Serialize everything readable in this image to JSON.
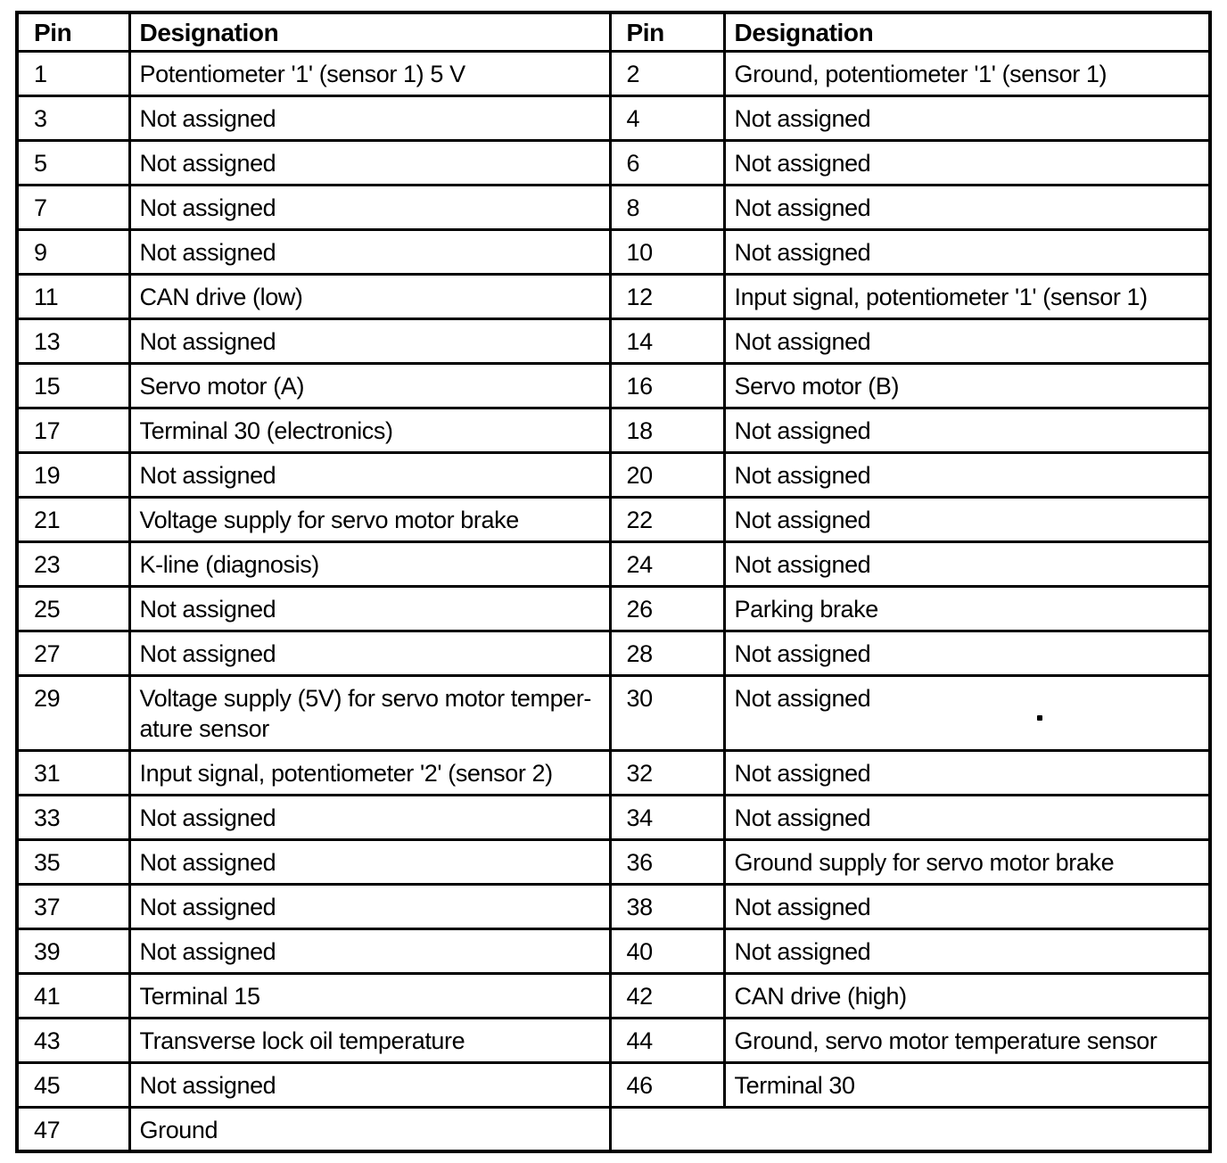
{
  "table": {
    "header": [
      "Pin",
      "Designation",
      "Pin",
      "Designation"
    ],
    "rows": [
      {
        "pin_left": "1",
        "designation_left": "Potentiometer '1' (sensor 1) 5 V",
        "pin_right": "2",
        "designation_right": "Ground, potentiometer '1' (sensor 1)"
      },
      {
        "pin_left": "3",
        "designation_left": "Not assigned",
        "pin_right": "4",
        "designation_right": "Not assigned"
      },
      {
        "pin_left": "5",
        "designation_left": "Not assigned",
        "pin_right": "6",
        "designation_right": "Not assigned"
      },
      {
        "pin_left": "7",
        "designation_left": "Not assigned",
        "pin_right": "8",
        "designation_right": "Not assigned"
      },
      {
        "pin_left": "9",
        "designation_left": "Not assigned",
        "pin_right": "10",
        "designation_right": "Not assigned"
      },
      {
        "pin_left": "11",
        "designation_left": "CAN drive (low)",
        "pin_right": "12",
        "designation_right": "Input signal, potentiometer '1' (sensor 1)"
      },
      {
        "pin_left": "13",
        "designation_left": "Not assigned",
        "pin_right": "14",
        "designation_right": "Not assigned"
      },
      {
        "pin_left": "15",
        "designation_left": "Servo motor (A)",
        "pin_right": "16",
        "designation_right": "Servo motor (B)"
      },
      {
        "pin_left": "17",
        "designation_left": "Terminal 30 (electronics)",
        "pin_right": "18",
        "designation_right": "Not assigned"
      },
      {
        "pin_left": "19",
        "designation_left": "Not assigned",
        "pin_right": "20",
        "designation_right": "Not assigned"
      },
      {
        "pin_left": "21",
        "designation_left": "Voltage supply for servo motor brake",
        "pin_right": "22",
        "designation_right": "Not assigned"
      },
      {
        "pin_left": "23",
        "designation_left": "K-line (diagnosis)",
        "pin_right": "24",
        "designation_right": "Not assigned"
      },
      {
        "pin_left": "25",
        "designation_left": "Not assigned",
        "pin_right": "26",
        "designation_right": "Parking brake"
      },
      {
        "pin_left": "27",
        "designation_left": "Not assigned",
        "pin_right": "28",
        "designation_right": "Not assigned"
      },
      {
        "pin_left": "29",
        "designation_left": "Voltage supply (5V) for servo motor temper-\nature sensor",
        "pin_right": "30",
        "designation_right": "Not assigned",
        "tall": true
      },
      {
        "pin_left": "31",
        "designation_left": "Input signal, potentiometer '2' (sensor 2)",
        "pin_right": "32",
        "designation_right": "Not assigned"
      },
      {
        "pin_left": "33",
        "designation_left": "Not assigned",
        "pin_right": "34",
        "designation_right": "Not assigned"
      },
      {
        "pin_left": "35",
        "designation_left": "Not assigned",
        "pin_right": "36",
        "designation_right": "Ground supply for servo motor brake"
      },
      {
        "pin_left": "37",
        "designation_left": "Not assigned",
        "pin_right": "38",
        "designation_right": "Not assigned"
      },
      {
        "pin_left": "39",
        "designation_left": "Not assigned",
        "pin_right": "40",
        "designation_right": "Not assigned"
      },
      {
        "pin_left": "41",
        "designation_left": "Terminal 15",
        "pin_right": "42",
        "designation_right": "CAN drive (high)"
      },
      {
        "pin_left": "43",
        "designation_left": "Transverse lock oil temperature",
        "pin_right": "44",
        "designation_right": "Ground, servo motor temperature sensor"
      },
      {
        "pin_left": "45",
        "designation_left": "Not assigned",
        "pin_right": "46",
        "designation_right": "Terminal 30"
      },
      {
        "pin_left": "47",
        "designation_left": "Ground",
        "pin_right": null,
        "designation_right": null,
        "merged_right": true
      }
    ]
  }
}
